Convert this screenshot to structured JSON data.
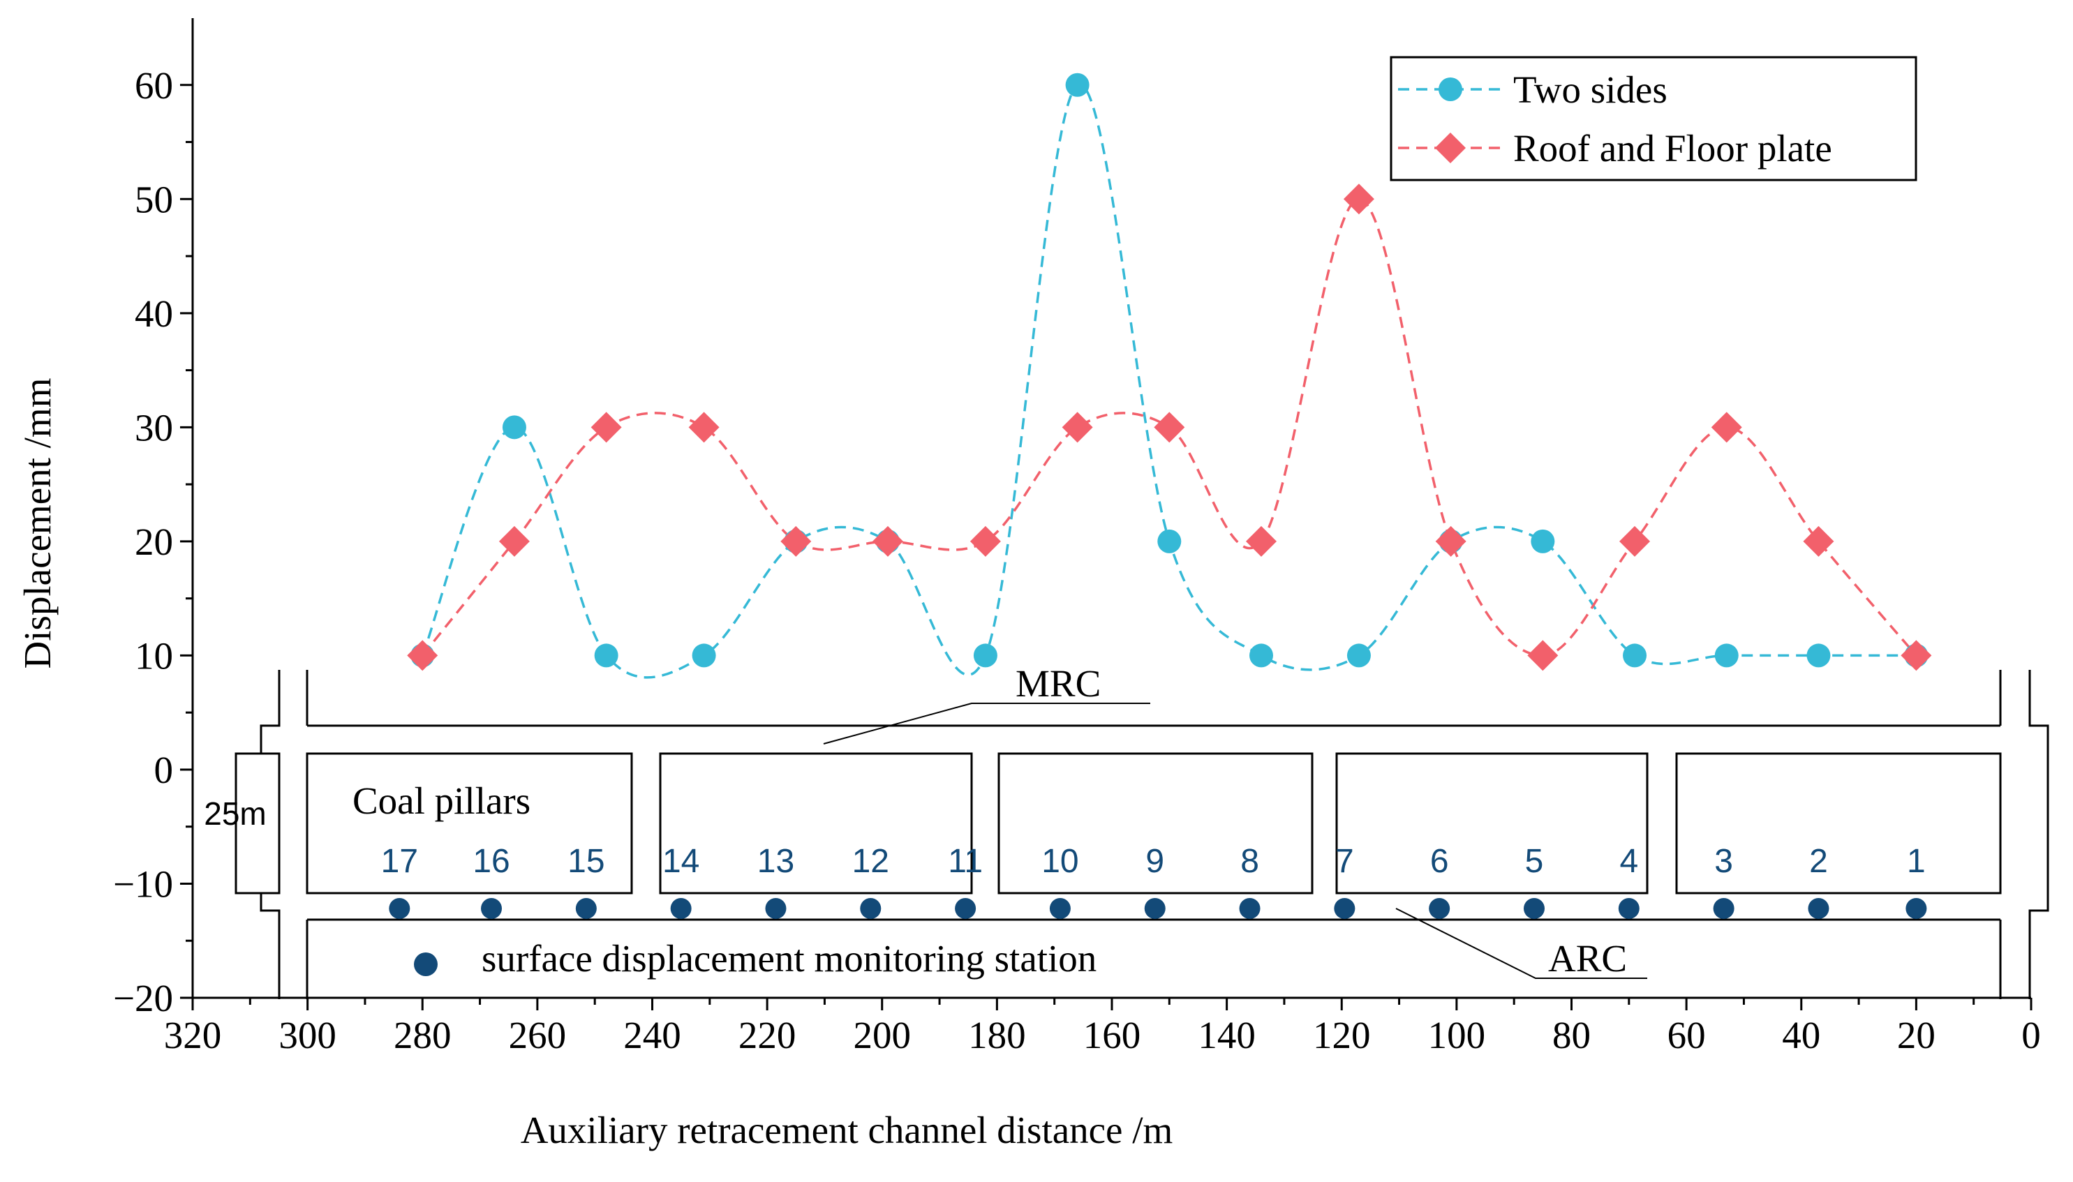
{
  "chart_data": {
    "type": "line",
    "xlabel": "Auxiliary retracement channel distance /m",
    "ylabel": "Displacement /mm",
    "xlim": [
      320,
      0
    ],
    "ylim": [
      -20,
      65
    ],
    "x_reversed": true,
    "x_ticks": [
      320,
      300,
      280,
      260,
      240,
      220,
      200,
      180,
      160,
      140,
      120,
      100,
      80,
      60,
      40,
      20,
      0
    ],
    "y_ticks": [
      -20,
      -10,
      0,
      10,
      20,
      30,
      40,
      50,
      60
    ],
    "legend_position": "top-right",
    "series": [
      {
        "name": "Two sides",
        "color": "#35B9D6",
        "marker": "circle",
        "line_style": "dashed",
        "x": [
          280,
          264,
          248,
          231,
          215,
          199,
          182,
          166,
          150,
          134,
          117,
          101,
          85,
          69,
          53,
          37,
          20
        ],
        "y": [
          10,
          30,
          10,
          10,
          20,
          20,
          10,
          60,
          20,
          10,
          10,
          20,
          20,
          10,
          10,
          10,
          10
        ]
      },
      {
        "name": "Roof and Floor plate",
        "color": "#F2606B",
        "marker": "diamond",
        "line_style": "dashed",
        "x": [
          280,
          264,
          248,
          231,
          215,
          199,
          182,
          166,
          150,
          134,
          117,
          101,
          85,
          69,
          53,
          37,
          20
        ],
        "y": [
          10,
          20,
          30,
          30,
          20,
          20,
          20,
          30,
          30,
          20,
          50,
          20,
          10,
          20,
          30,
          20,
          10
        ]
      }
    ],
    "schematic": {
      "labels": {
        "mrc": "MRC",
        "arc": "ARC",
        "coal_pillars": "Coal pillars",
        "width": "25m"
      },
      "station_legend": "surface displacement monitoring station",
      "station_color": "#134A78",
      "station_label_color": "#134A78",
      "stations": [
        {
          "label": "17",
          "x": 284
        },
        {
          "label": "16",
          "x": 268
        },
        {
          "label": "15",
          "x": 251.5
        },
        {
          "label": "14",
          "x": 235
        },
        {
          "label": "13",
          "x": 218.5
        },
        {
          "label": "12",
          "x": 202
        },
        {
          "label": "11",
          "x": 185.5
        },
        {
          "label": "10",
          "x": 169
        },
        {
          "label": "9",
          "x": 152.5
        },
        {
          "label": "8",
          "x": 136
        },
        {
          "label": "7",
          "x": 119.5
        },
        {
          "label": "6",
          "x": 103
        },
        {
          "label": "5",
          "x": 86.5
        },
        {
          "label": "4",
          "x": 70
        },
        {
          "label": "3",
          "x": 53.5
        },
        {
          "label": "2",
          "x": 37
        },
        {
          "label": "1",
          "x": 20
        }
      ]
    }
  }
}
